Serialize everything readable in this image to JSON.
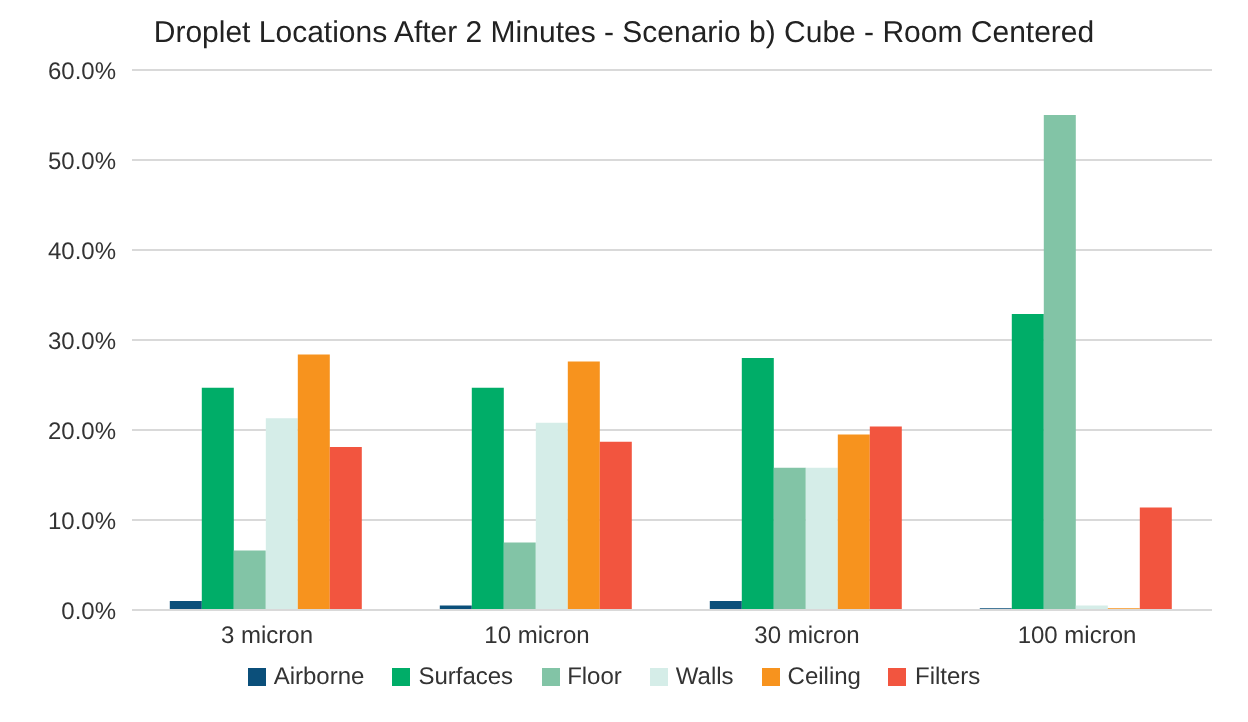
{
  "chart_data": {
    "type": "bar",
    "title": "Droplet Locations After 2 Minutes - Scenario b) Cube - Room Centered",
    "categories": [
      "3 micron",
      "10 micron",
      "30 micron",
      "100 micron"
    ],
    "series": [
      {
        "name": "Airborne",
        "color": "#0b4f7a",
        "values": [
          1.0,
          0.5,
          1.0,
          0.2
        ]
      },
      {
        "name": "Surfaces",
        "color": "#00ad68",
        "values": [
          24.7,
          24.7,
          28.0,
          32.9
        ]
      },
      {
        "name": "Floor",
        "color": "#82c4a6",
        "values": [
          6.6,
          7.5,
          15.8,
          55.0
        ]
      },
      {
        "name": "Walls",
        "color": "#d5ede8",
        "values": [
          21.3,
          20.8,
          15.8,
          0.5
        ]
      },
      {
        "name": "Ceiling",
        "color": "#f7931e",
        "values": [
          28.4,
          27.6,
          19.5,
          0.2
        ]
      },
      {
        "name": "Filters",
        "color": "#f2553f",
        "values": [
          18.1,
          18.7,
          20.4,
          11.4
        ]
      }
    ],
    "ylim": [
      0,
      60
    ],
    "yticks": [
      {
        "value": 0,
        "label": "0.0%"
      },
      {
        "value": 10,
        "label": "10.0%"
      },
      {
        "value": 20,
        "label": "20.0%"
      },
      {
        "value": 30,
        "label": "30.0%"
      },
      {
        "value": 40,
        "label": "40.0%"
      },
      {
        "value": 50,
        "label": "50.0%"
      },
      {
        "value": 60,
        "label": "60.0%"
      }
    ],
    "grid": "y",
    "legend": "bottom"
  }
}
